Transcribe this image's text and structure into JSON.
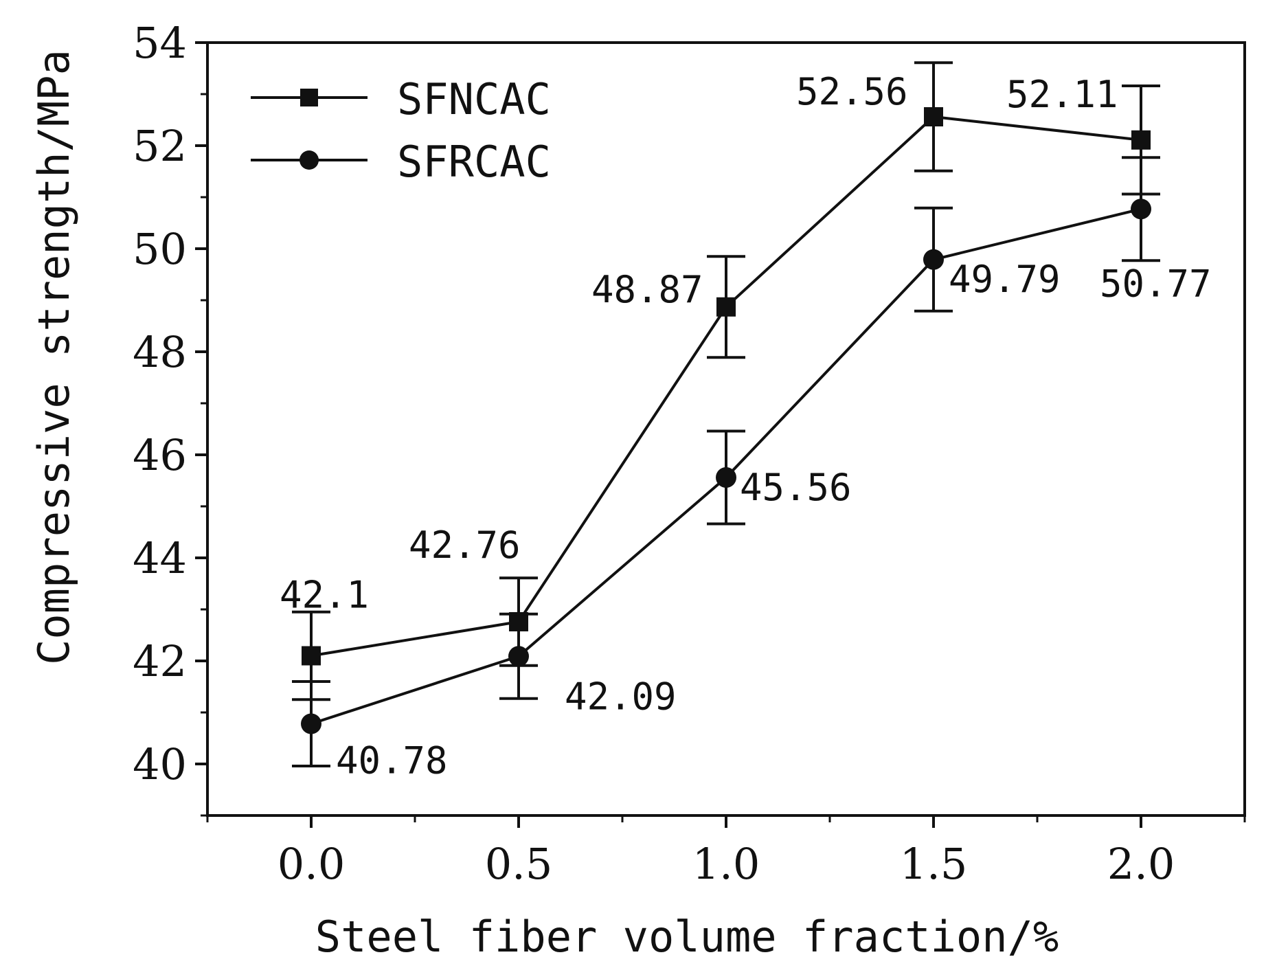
{
  "chart_data": {
    "type": "line",
    "xlabel": "Steel fiber volume fraction/%",
    "ylabel": "Compressive strength/MPa",
    "x": [
      0.0,
      0.5,
      1.0,
      1.5,
      2.0
    ],
    "x_tick_labels": [
      "0.0",
      "0.5",
      "1.0",
      "1.5",
      "2.0"
    ],
    "xlim": [
      -0.25,
      2.25
    ],
    "y_ticks": [
      40,
      42,
      44,
      46,
      48,
      50,
      52,
      54
    ],
    "y_tick_labels": [
      "40",
      "42",
      "44",
      "46",
      "48",
      "50",
      "52",
      "54"
    ],
    "ylim": [
      39,
      54
    ],
    "grid": false,
    "legend_position": "top-left",
    "series": [
      {
        "name": "SFNCAC",
        "marker": "square",
        "values": [
          42.1,
          42.76,
          48.87,
          52.56,
          52.11
        ],
        "error": [
          0.85,
          0.85,
          0.98,
          1.05,
          1.05
        ],
        "labels": [
          "42.1",
          "42.76",
          "48.87",
          "52.56",
          "52.11"
        ]
      },
      {
        "name": "SFRCAC",
        "marker": "circle",
        "values": [
          40.78,
          42.09,
          45.56,
          49.79,
          50.77
        ],
        "error": [
          0.82,
          0.82,
          0.9,
          1.0,
          1.0
        ],
        "labels": [
          "40.78",
          "42.09",
          "45.56",
          "49.79",
          "50.77"
        ]
      }
    ]
  }
}
